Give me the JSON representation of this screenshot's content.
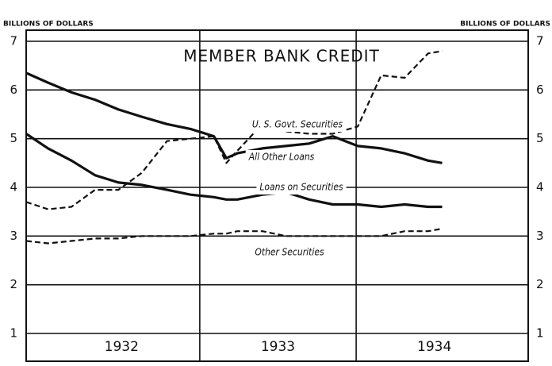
{
  "chart_data": {
    "type": "line",
    "title": "MEMBER BANK CREDIT",
    "ylabel": "BILLIONS OF DOLLARS",
    "y2label": "BILLIONS OF DOLLARS",
    "x": [
      1931.89,
      1932.03,
      1932.18,
      1932.33,
      1932.48,
      1932.63,
      1932.79,
      1932.94,
      1933.09,
      1933.17,
      1933.24,
      1933.4,
      1933.55,
      1933.7,
      1933.85,
      1934.01,
      1934.16,
      1934.31,
      1934.46,
      1934.55
    ],
    "series": [
      {
        "name": "All Other Loans",
        "color": "#111111",
        "style": "solid",
        "values": [
          6.35,
          6.15,
          5.95,
          5.8,
          5.6,
          5.45,
          5.3,
          5.2,
          5.05,
          4.6,
          4.7,
          4.8,
          4.85,
          4.9,
          5.05,
          4.85,
          4.8,
          4.7,
          4.55,
          4.5
        ]
      },
      {
        "name": "Loans on Securities",
        "color": "#111111",
        "style": "solid",
        "values": [
          5.1,
          4.8,
          4.55,
          4.25,
          4.1,
          4.05,
          3.95,
          3.85,
          3.8,
          3.75,
          3.75,
          3.85,
          3.9,
          3.75,
          3.65,
          3.65,
          3.6,
          3.65,
          3.6,
          3.6
        ]
      },
      {
        "name": "U. S. Govt. Securities",
        "color": "#111111",
        "style": "dashed",
        "values": [
          3.7,
          3.55,
          3.6,
          3.95,
          3.95,
          4.3,
          4.95,
          5.0,
          5.05,
          4.5,
          4.75,
          5.3,
          5.15,
          5.1,
          5.1,
          5.25,
          6.3,
          6.25,
          6.75,
          6.8
        ]
      },
      {
        "name": "Other Securities",
        "color": "#111111",
        "style": "dashed",
        "values": [
          2.9,
          2.85,
          2.9,
          2.95,
          2.95,
          3.0,
          3.0,
          3.0,
          3.05,
          3.05,
          3.1,
          3.1,
          3.0,
          3.0,
          3.0,
          3.0,
          3.0,
          3.1,
          3.1,
          3.15
        ]
      }
    ],
    "xlim": [
      1931.89,
      1935.1
    ],
    "xticks": [
      {
        "value": 1932.5,
        "label": "1932"
      },
      {
        "value": 1933.5,
        "label": "1933"
      },
      {
        "value": 1934.5,
        "label": "1934"
      }
    ],
    "xgrid": [
      1933,
      1934
    ],
    "ylim": [
      1,
      7
    ],
    "yticks": [
      1,
      2,
      3,
      4,
      5,
      6,
      7
    ],
    "grid": true
  }
}
